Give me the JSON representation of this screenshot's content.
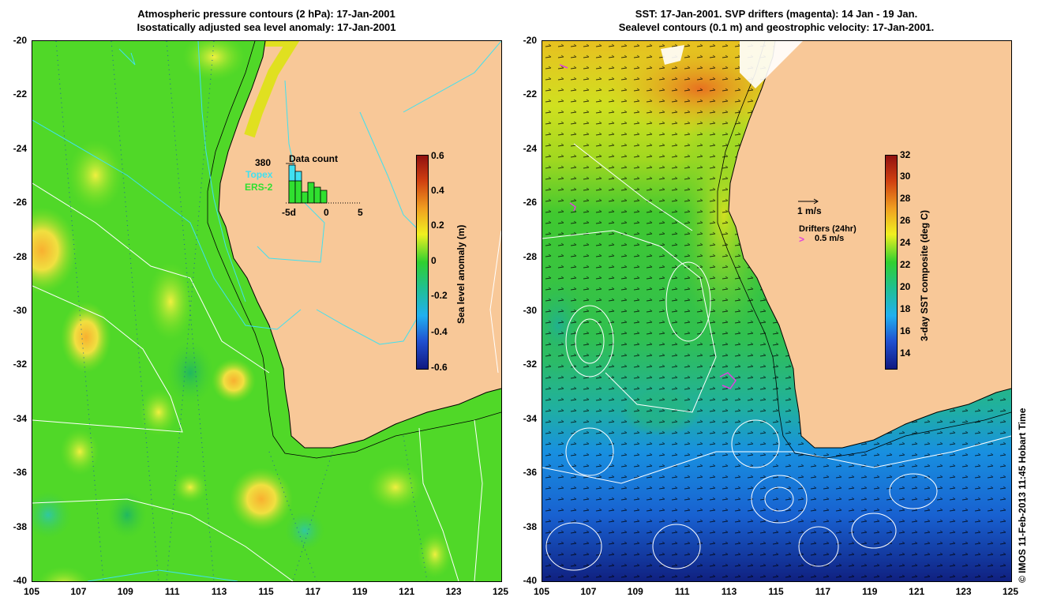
{
  "left_panel": {
    "title_line1": "Atmospheric pressure contours (2 hPa): 17-Jan-2001",
    "title_line2": "Isostatically adjusted sea level anomaly: 17-Jan-2001",
    "colorbar": {
      "title": "Sea level anomaly (m)",
      "ticks": [
        "0.6",
        "0.4",
        "0.2",
        "0",
        "-0.2",
        "-0.4",
        "-0.6"
      ]
    },
    "data_count": {
      "title": "Data count",
      "max_label": "380",
      "series1": "Topex",
      "series2": "ERS-2",
      "axis_labels": [
        "-5d",
        "0",
        "5"
      ],
      "topex_color": "#40e0f0",
      "ers_color": "#30e030"
    }
  },
  "right_panel": {
    "title_line1": "SST: 17-Jan-2001. SVP drifters (magenta): 14 Jan - 19 Jan.",
    "title_line2": "Sealevel contours (0.1 m) and geostrophic velocity: 17-Jan-2001.",
    "colorbar": {
      "title": "3-day SST composite (deg C)",
      "ticks": [
        "32",
        "30",
        "28",
        "26",
        "24",
        "22",
        "20",
        "18",
        "16",
        "14"
      ]
    },
    "velocity_scale": "1 m/s",
    "drifters_label": "Drifters (24hr)",
    "drifters_scale": "0.5 m/s"
  },
  "axes": {
    "lat_ticks": [
      "-20",
      "-22",
      "-24",
      "-26",
      "-28",
      "-30",
      "-32",
      "-34",
      "-36",
      "-38",
      "-40"
    ],
    "lon_ticks": [
      "105",
      "107",
      "109",
      "111",
      "113",
      "115",
      "117",
      "119",
      "121",
      "123",
      "125"
    ]
  },
  "credit": "© IMOS 11-Feb-2013 11:45 Hobart Time",
  "colors": {
    "land": "#f8c898",
    "ocean_base": "#40d820",
    "drifter": "#e040e0"
  }
}
